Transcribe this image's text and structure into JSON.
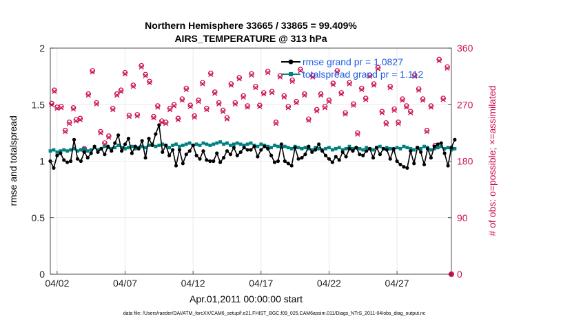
{
  "chart_data": {
    "type": "line",
    "title_lines": [
      "Northern Hemisphere 33665 / 33865 = 99.409%",
      "AIRS_TEMPERATURE @ 313 hPa"
    ],
    "xlabel": "Apr.01,2011 00:00:00 start",
    "ylabel": "rmse and totalspread",
    "ylabel_right": "# of obs: o=possible; ×=assimilated",
    "footnote": "data file: /Users/raeder/DAI/ATM_forcXX/CAM6_setup/f.e21.FHIST_BGC.f09_025.CAM6assim.011/Diags_NTrS_2011-04/obs_diag_output.nc",
    "xlim": [
      1.5,
      31.0
    ],
    "ylim": [
      0,
      2
    ],
    "ylim_right": [
      0,
      360
    ],
    "x_ticks": [
      {
        "x": 2,
        "label": "04/02"
      },
      {
        "x": 7,
        "label": "04/07"
      },
      {
        "x": 12,
        "label": "04/12"
      },
      {
        "x": 17,
        "label": "04/17"
      },
      {
        "x": 22,
        "label": "04/22"
      },
      {
        "x": 27,
        "label": "04/27"
      }
    ],
    "y_ticks": [
      {
        "y": 0,
        "label": "0"
      },
      {
        "y": 0.5,
        "label": "0.5"
      },
      {
        "y": 1,
        "label": "1"
      },
      {
        "y": 1.5,
        "label": "1.5"
      },
      {
        "y": 2,
        "label": "2"
      }
    ],
    "y_ticks_right": [
      {
        "y": 0,
        "label": "0"
      },
      {
        "y": 90,
        "label": "90"
      },
      {
        "y": 180,
        "label": "180"
      },
      {
        "y": 270,
        "label": "270"
      },
      {
        "y": 360,
        "label": "360"
      }
    ],
    "grid": true,
    "series": [
      {
        "name": "rmse",
        "legend": "rmse grand pr = 1.0827",
        "color": "#000000",
        "x_start": 1.5,
        "x_step": 0.25,
        "values": [
          1.0,
          0.94,
          1.05,
          1.07,
          1.01,
          0.99,
          1.0,
          1.19,
          1.02,
          1.0,
          1.08,
          1.03,
          1.07,
          1.13,
          1.08,
          1.11,
          1.06,
          1.13,
          1.09,
          1.16,
          1.23,
          1.09,
          1.15,
          1.2,
          1.07,
          1.13,
          1.11,
          1.18,
          1.03,
          1.2,
          1.14,
          1.24,
          1.32,
          1.08,
          1.14,
          1.05,
          1.1,
          0.96,
          1.1,
          0.98,
          1.06,
          1.09,
          1.14,
          1.05,
          1.02,
          1.09,
          1.01,
          1.0,
          1.0,
          1.07,
          0.99,
          1.03,
          1.09,
          1.06,
          1.12,
          1.05,
          1.08,
          1.12,
          1.1,
          1.1,
          1.13,
          1.04,
          1.1,
          1.13,
          1.11,
          1.05,
          0.99,
          1.0,
          1.15,
          1.0,
          0.98,
          0.96,
          1.12,
          1.02,
          1.03,
          1.06,
          1.13,
          1.08,
          1.1,
          1.15,
          1.09,
          1.05,
          1.02,
          0.99,
          1.04,
          1.01,
          1.08,
          1.04,
          1.11,
          1.09,
          1.12,
          1.06,
          1.05,
          1.09,
          1.11,
          1.03,
          1.12,
          1.06,
          1.11,
          1.1,
          1.02,
          1.11,
          1.0,
          0.97,
          0.95,
          0.94,
          1.09,
          0.98,
          1.12,
          1.08,
          0.97,
          1.11,
          1.03,
          1.13,
          1.15,
          1.16,
          1.07,
          0.96,
          1.12,
          1.19
        ]
      },
      {
        "name": "totalspread",
        "legend": "totalspread grand pr = 1.112",
        "color": "#008080",
        "x_start": 1.5,
        "x_step": 0.25,
        "values": [
          1.09,
          1.1,
          1.08,
          1.09,
          1.1,
          1.09,
          1.1,
          1.11,
          1.09,
          1.1,
          1.11,
          1.09,
          1.1,
          1.12,
          1.1,
          1.11,
          1.13,
          1.12,
          1.11,
          1.12,
          1.14,
          1.12,
          1.11,
          1.12,
          1.13,
          1.11,
          1.12,
          1.13,
          1.12,
          1.14,
          1.15,
          1.13,
          1.14,
          1.15,
          1.14,
          1.12,
          1.14,
          1.15,
          1.13,
          1.14,
          1.15,
          1.16,
          1.14,
          1.15,
          1.14,
          1.16,
          1.15,
          1.14,
          1.15,
          1.16,
          1.17,
          1.15,
          1.16,
          1.14,
          1.15,
          1.16,
          1.15,
          1.14,
          1.15,
          1.16,
          1.14,
          1.13,
          1.15,
          1.14,
          1.13,
          1.12,
          1.14,
          1.13,
          1.12,
          1.13,
          1.12,
          1.11,
          1.13,
          1.12,
          1.11,
          1.12,
          1.11,
          1.1,
          1.12,
          1.11,
          1.1,
          1.11,
          1.12,
          1.1,
          1.11,
          1.12,
          1.1,
          1.11,
          1.13,
          1.11,
          1.12,
          1.11,
          1.1,
          1.12,
          1.11,
          1.1,
          1.12,
          1.13,
          1.11,
          1.12,
          1.11,
          1.1,
          1.12,
          1.11,
          1.13,
          1.12,
          1.11,
          1.1,
          1.12,
          1.11,
          1.13,
          1.12,
          1.1,
          1.11,
          1.12,
          1.13,
          1.11,
          1.12,
          1.1,
          1.11
        ]
      },
      {
        "name": "obs_possible",
        "color": "#cc1155",
        "points": [
          [
            1.6,
            272
          ],
          [
            1.8,
            293
          ],
          [
            2.0,
            266
          ],
          [
            2.3,
            267
          ],
          [
            2.6,
            229
          ],
          [
            2.9,
            242
          ],
          [
            3.2,
            265
          ],
          [
            3.4,
            246
          ],
          [
            3.7,
            248
          ],
          [
            4.0,
            200
          ],
          [
            4.3,
            287
          ],
          [
            4.6,
            324
          ],
          [
            4.9,
            273
          ],
          [
            5.2,
            227
          ],
          [
            5.5,
            209
          ],
          [
            5.8,
            220
          ],
          [
            6.1,
            264
          ],
          [
            6.4,
            287
          ],
          [
            6.7,
            293
          ],
          [
            7.0,
            321
          ],
          [
            7.3,
            253
          ],
          [
            7.6,
            301
          ],
          [
            7.9,
            254
          ],
          [
            8.2,
            332
          ],
          [
            8.5,
            318
          ],
          [
            8.8,
            307
          ],
          [
            9.1,
            251
          ],
          [
            9.4,
            268
          ],
          [
            9.7,
            244
          ],
          [
            10.0,
            242
          ],
          [
            10.3,
            264
          ],
          [
            10.6,
            270
          ],
          [
            10.9,
            248
          ],
          [
            11.2,
            279
          ],
          [
            11.5,
            296
          ],
          [
            11.8,
            269
          ],
          [
            12.1,
            252
          ],
          [
            12.4,
            277
          ],
          [
            12.7,
            305
          ],
          [
            13.0,
            264
          ],
          [
            13.3,
            320
          ],
          [
            13.6,
            290
          ],
          [
            13.9,
            273
          ],
          [
            14.2,
            261
          ],
          [
            14.5,
            249
          ],
          [
            14.8,
            303
          ],
          [
            15.1,
            273
          ],
          [
            15.4,
            313
          ],
          [
            15.7,
            284
          ],
          [
            16.0,
            268
          ],
          [
            16.3,
            319
          ],
          [
            16.6,
            299
          ],
          [
            16.9,
            269
          ],
          [
            17.2,
            289
          ],
          [
            17.5,
            323
          ],
          [
            17.8,
            291
          ],
          [
            18.1,
            242
          ],
          [
            18.4,
            316
          ],
          [
            18.7,
            284
          ],
          [
            19.0,
            267
          ],
          [
            19.3,
            309
          ],
          [
            19.6,
            275
          ],
          [
            19.9,
            326
          ],
          [
            20.2,
            287
          ],
          [
            20.5,
            247
          ],
          [
            20.8,
            316
          ],
          [
            21.1,
            262
          ],
          [
            21.4,
            287
          ],
          [
            21.7,
            267
          ],
          [
            22.0,
            277
          ],
          [
            22.3,
            304
          ],
          [
            22.6,
            324
          ],
          [
            22.9,
            289
          ],
          [
            23.2,
            257
          ],
          [
            23.5,
            305
          ],
          [
            23.8,
            271
          ],
          [
            24.1,
            225
          ],
          [
            24.4,
            296
          ],
          [
            24.7,
            280
          ],
          [
            25.0,
            317
          ],
          [
            25.3,
            303
          ],
          [
            25.6,
            329
          ],
          [
            25.9,
            259
          ],
          [
            26.2,
            241
          ],
          [
            26.5,
            299
          ],
          [
            26.8,
            263
          ],
          [
            27.1,
            242
          ],
          [
            27.4,
            279
          ],
          [
            27.7,
            268
          ],
          [
            28.0,
            259
          ],
          [
            28.3,
            317
          ],
          [
            28.6,
            295
          ],
          [
            28.9,
            279
          ],
          [
            29.2,
            229
          ],
          [
            29.5,
            268
          ],
          [
            29.8,
            205
          ],
          [
            30.1,
            342
          ],
          [
            30.4,
            280
          ],
          [
            30.7,
            330
          ]
        ]
      },
      {
        "name": "obs_assimilated",
        "color": "#cc1155",
        "points": [
          [
            1.6,
            270
          ],
          [
            1.8,
            291
          ],
          [
            2.0,
            264
          ],
          [
            2.3,
            265
          ],
          [
            2.6,
            227
          ],
          [
            2.9,
            240
          ],
          [
            3.2,
            263
          ],
          [
            3.4,
            244
          ],
          [
            3.7,
            246
          ],
          [
            4.0,
            198
          ],
          [
            4.3,
            285
          ],
          [
            4.6,
            322
          ],
          [
            4.9,
            271
          ],
          [
            5.2,
            225
          ],
          [
            5.5,
            207
          ],
          [
            5.8,
            218
          ],
          [
            6.1,
            262
          ],
          [
            6.4,
            285
          ],
          [
            6.7,
            291
          ],
          [
            7.0,
            319
          ],
          [
            7.3,
            251
          ],
          [
            7.6,
            299
          ],
          [
            7.9,
            252
          ],
          [
            8.2,
            330
          ],
          [
            8.5,
            316
          ],
          [
            8.8,
            305
          ],
          [
            9.1,
            249
          ],
          [
            9.4,
            266
          ],
          [
            9.7,
            242
          ],
          [
            10.0,
            240
          ],
          [
            10.3,
            262
          ],
          [
            10.6,
            268
          ],
          [
            10.9,
            246
          ],
          [
            11.2,
            277
          ],
          [
            11.5,
            294
          ],
          [
            11.8,
            267
          ],
          [
            12.1,
            250
          ],
          [
            12.4,
            275
          ],
          [
            12.7,
            303
          ],
          [
            13.0,
            262
          ],
          [
            13.3,
            318
          ],
          [
            13.6,
            288
          ],
          [
            13.9,
            271
          ],
          [
            14.2,
            259
          ],
          [
            14.5,
            247
          ],
          [
            14.8,
            301
          ],
          [
            15.1,
            271
          ],
          [
            15.4,
            311
          ],
          [
            15.7,
            282
          ],
          [
            16.0,
            266
          ],
          [
            16.3,
            317
          ],
          [
            16.6,
            297
          ],
          [
            16.9,
            267
          ],
          [
            17.2,
            287
          ],
          [
            17.5,
            321
          ],
          [
            17.8,
            289
          ],
          [
            18.1,
            240
          ],
          [
            18.4,
            314
          ],
          [
            18.7,
            282
          ],
          [
            19.0,
            265
          ],
          [
            19.3,
            307
          ],
          [
            19.6,
            273
          ],
          [
            19.9,
            324
          ],
          [
            20.2,
            285
          ],
          [
            20.5,
            245
          ],
          [
            20.8,
            314
          ],
          [
            21.1,
            260
          ],
          [
            21.4,
            285
          ],
          [
            21.7,
            265
          ],
          [
            22.0,
            275
          ],
          [
            22.3,
            302
          ],
          [
            22.6,
            322
          ],
          [
            22.9,
            287
          ],
          [
            23.2,
            255
          ],
          [
            23.5,
            303
          ],
          [
            23.8,
            269
          ],
          [
            24.1,
            223
          ],
          [
            24.4,
            294
          ],
          [
            24.7,
            278
          ],
          [
            25.0,
            315
          ],
          [
            25.3,
            301
          ],
          [
            25.6,
            327
          ],
          [
            25.9,
            257
          ],
          [
            26.2,
            239
          ],
          [
            26.5,
            297
          ],
          [
            26.8,
            261
          ],
          [
            27.1,
            240
          ],
          [
            27.4,
            277
          ],
          [
            27.7,
            266
          ],
          [
            28.0,
            257
          ],
          [
            28.3,
            315
          ],
          [
            28.6,
            293
          ],
          [
            28.9,
            277
          ],
          [
            29.2,
            227
          ],
          [
            29.5,
            266
          ],
          [
            29.8,
            203
          ],
          [
            30.1,
            340
          ],
          [
            30.4,
            278
          ],
          [
            30.7,
            328
          ]
        ]
      }
    ]
  }
}
